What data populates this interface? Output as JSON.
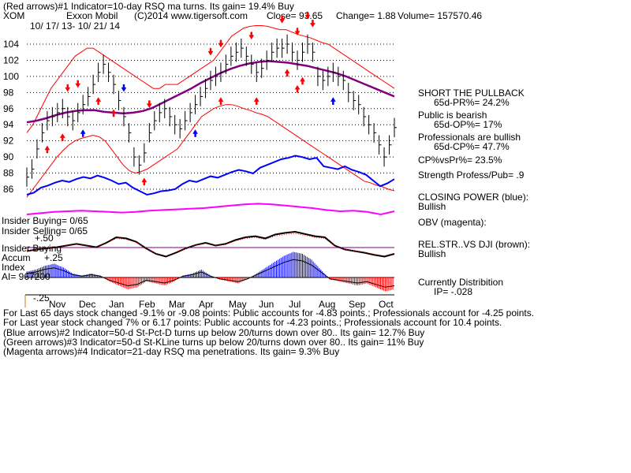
{
  "header": {
    "line1": "(Red arrows)#1 Indicator=10-day RSQ ma turns. Its gain= 19.4% Buy",
    "ticker": "XOM",
    "company": "Exxon Mobil",
    "copyright": "(C)2014 www.tigersoft.com",
    "close": "Close= 93.65",
    "change": "Change= 1.88",
    "volume": "Volume= 157570.46",
    "date_range": "10/ 17/ 13- 10/ 21/ 14"
  },
  "colors": {
    "price_bar": "#000000",
    "band": "#ff0000",
    "ma_purple": "#800080",
    "closing_power": "#0000ff",
    "obv": "#ff00ff",
    "rel_str": "#000000",
    "accum_pos": "#0000ff",
    "accum_neg": "#ff0000",
    "arrow_red": "#ff0000",
    "arrow_blue": "#0000ff"
  },
  "chart_data": {
    "type": "line",
    "x_tick_labels": [
      "Nov",
      "Dec",
      "Jan",
      "Feb",
      "Mar",
      "Apr",
      "May",
      "Jun",
      "Jul",
      "Aug",
      "Sep",
      "Oct"
    ],
    "y_tick_labels": [
      "104",
      "102",
      "100",
      "98",
      "96",
      "94",
      "92",
      "90",
      "88",
      "86"
    ],
    "ylim": [
      85,
      106
    ],
    "price": [
      87.5,
      88.5,
      91,
      93,
      94.5,
      95,
      95.5,
      96,
      95,
      94.5,
      95.5,
      96.5,
      97.5,
      99,
      100.5,
      101.5,
      100.5,
      99,
      97,
      95,
      93,
      90,
      89,
      90.5,
      93,
      94.5,
      95.5,
      96,
      95,
      94,
      93.5,
      94.5,
      95.5,
      96.5,
      97.5,
      98.5,
      99.5,
      100,
      100.5,
      101.5,
      102.5,
      103,
      103.5,
      102.5,
      101.5,
      100.5,
      101,
      102,
      103,
      103.5,
      103.5,
      104,
      103,
      102,
      103,
      104,
      103,
      100,
      99.5,
      100,
      100.5,
      100,
      99.5,
      98,
      97,
      96.5,
      95,
      94,
      93,
      91.5,
      90,
      91.5,
      93.65
    ],
    "band_upper": [
      93,
      94,
      95.5,
      97,
      98.5,
      99.5,
      100.5,
      101.5,
      102.5,
      103,
      103.5,
      103.5,
      103,
      102.5,
      102,
      101.5,
      101,
      100.5,
      100,
      99.5,
      99,
      98.5,
      98.5,
      99,
      99,
      99,
      99.5,
      100,
      100.5,
      101,
      101.5,
      102,
      103,
      104,
      105,
      105.5,
      106,
      106.2,
      106.3,
      106.3,
      106.2,
      106,
      105.8,
      105.8,
      105.5,
      105.2,
      105,
      104.8,
      104.5,
      104.2,
      104,
      103.5,
      103,
      102.5,
      102,
      101.5,
      101,
      100.5,
      100,
      99.5,
      99,
      98.5
    ],
    "band_lower": [
      85,
      86,
      87,
      88,
      89,
      90,
      90.8,
      91.5,
      92,
      92.3,
      92.5,
      92.7,
      92.5,
      92,
      91,
      90,
      89,
      88.3,
      88,
      88.2,
      88.5,
      89,
      89.5,
      90,
      90.5,
      91,
      92,
      93,
      94,
      95,
      95.5,
      96,
      96.3,
      96.5,
      96.5,
      96.3,
      96,
      95.8,
      95.5,
      95.3,
      95,
      94.5,
      94,
      93.5,
      93,
      92.5,
      92,
      91.5,
      91,
      90.5,
      90,
      89.5,
      89,
      88.5,
      88,
      87.5,
      87,
      86.8,
      86.5,
      86.3,
      86,
      85.8
    ],
    "ma": [
      94.3,
      94.5,
      94.8,
      95.2,
      95.5,
      95.7,
      95.8,
      95.8,
      95.6,
      95.5,
      95.4,
      95.5,
      95.7,
      96.1,
      96.7,
      97.3,
      97.9,
      98.5,
      99.2,
      99.8,
      100.4,
      100.9,
      101.3,
      101.6,
      101.8,
      101.9,
      101.8,
      101.7,
      101.5,
      101.3,
      101.0,
      100.7,
      100.4,
      100.0,
      99.5,
      99.0,
      98.5,
      98.0,
      97.5
    ],
    "series": [
      {
        "name": "Closing Power",
        "values": [
          0.2,
          0.23,
          0.3,
          0.33,
          0.37,
          0.4,
          0.38,
          0.42,
          0.45,
          0.43,
          0.47,
          0.44,
          0.4,
          0.35,
          0.37,
          0.3,
          0.25,
          0.2,
          0.22,
          0.25,
          0.26,
          0.28,
          0.35,
          0.4,
          0.38,
          0.42,
          0.46,
          0.44,
          0.48,
          0.52,
          0.55,
          0.53,
          0.5,
          0.58,
          0.62,
          0.66,
          0.7,
          0.72,
          0.75,
          0.73,
          0.7,
          0.72,
          0.6,
          0.58,
          0.56,
          0.6,
          0.55,
          0.52,
          0.48,
          0.4,
          0.32,
          0.36,
          0.42
        ]
      },
      {
        "name": "OBV",
        "values": [
          0.1,
          0.12,
          0.14,
          0.15,
          0.16,
          0.15,
          0.14,
          0.13,
          0.14,
          0.16,
          0.17,
          0.18,
          0.19,
          0.2,
          0.22,
          0.24,
          0.26,
          0.27,
          0.26,
          0.24,
          0.22,
          0.2,
          0.17,
          0.15,
          0.16,
          0.14,
          0.1,
          0.15
        ]
      },
      {
        "name": "Rel Str vs DJI",
        "values": [
          0.45,
          0.48,
          0.5,
          0.52,
          0.55,
          0.58,
          0.55,
          0.52,
          0.6,
          0.7,
          0.68,
          0.62,
          0.5,
          0.4,
          0.35,
          0.42,
          0.5,
          0.56,
          0.6,
          0.55,
          0.58,
          0.65,
          0.7,
          0.72,
          0.68,
          0.75,
          0.78,
          0.8,
          0.76,
          0.72,
          0.7,
          0.55,
          0.48,
          0.45,
          0.42,
          0.38,
          0.35,
          0.4
        ]
      },
      {
        "name": "Accum Index",
        "values": [
          0.15,
          0.2,
          0.3,
          0.35,
          0.25,
          0.1,
          0.05,
          0.1,
          0.05,
          -0.1,
          -0.2,
          -0.3,
          -0.25,
          -0.1,
          -0.15,
          -0.2,
          -0.1,
          0.05,
          0.1,
          0.2,
          0.05,
          -0.05,
          -0.1,
          -0.15,
          -0.05,
          0.1,
          0.25,
          0.4,
          0.55,
          0.65,
          0.6,
          0.45,
          0.2,
          -0.05,
          -0.1,
          -0.15,
          -0.2,
          -0.15,
          -0.25,
          -0.35,
          -0.3
        ]
      }
    ],
    "red_arrows_down": [
      8,
      10,
      24,
      36,
      38,
      44,
      50,
      53,
      55,
      56
    ],
    "red_arrows_up": [
      4,
      7,
      14,
      17,
      23,
      38,
      45,
      51,
      53,
      54
    ],
    "blue_arrows_up": [
      11,
      33,
      60
    ],
    "blue_arrows_down": [
      19
    ]
  },
  "left_labels": {
    "insider_buying": "Insider Buying= 0/65",
    "insider_selling": "Insider Selling= 0/65",
    "insider_buying2": "Insider Buying",
    "accum": "Accum",
    "index": "Index",
    "ai": "AI= 967200",
    "plus_50": "+.50",
    "plus_25": "+.25",
    "minus_25": "-.25"
  },
  "right_panel": {
    "short_pullback": "SHORT THE PULLBACK",
    "pr_65d": "65d-PR%= 24.2%",
    "public_bearish": "Public is bearish",
    "op_65d": "65d-OP%= 17%",
    "pros_bullish": "Professionals are bullish",
    "cp_65d": "65d-CP%= 47.7%",
    "cp_vs_pr": "CP%vsPr%= 23.5%",
    "strength": "Strength Profess/Pub= .9",
    "closing_power": "CLOSING POWER (blue):",
    "closing_power_val": "Bullish",
    "obv": "OBV (magenta):",
    "rel_str": "REL.STR..VS DJI (brown):",
    "rel_str_val": "Bullish",
    "distribution": "Currently Distribition",
    "ip": "IP= -.028"
  },
  "footer": [
    "For Last 65 days stock changed -9.1% or -9.08 points:  Public accounts for -4.83 points.;  Professionals account for -4.25 points.",
    "For Last year stock changed  7% or  6.17 points:  Public accounts for -4.23 points.;  Professionals account for  10.4 points.",
    "(Blue arrows)#2 Indicator=50-d St-Pct-D turns up below 20/turns down over 80.. Its gain= 12.7% Buy",
    "(Green arrows)#3 Indicator=50-d St-KLine turns up below 20/turns down over 80.. Its gain= 11% Buy",
    "(Magenta arrows)#4 Indicator=21-day RSQ ma penetrations. Its gain= 9.3% Buy"
  ]
}
